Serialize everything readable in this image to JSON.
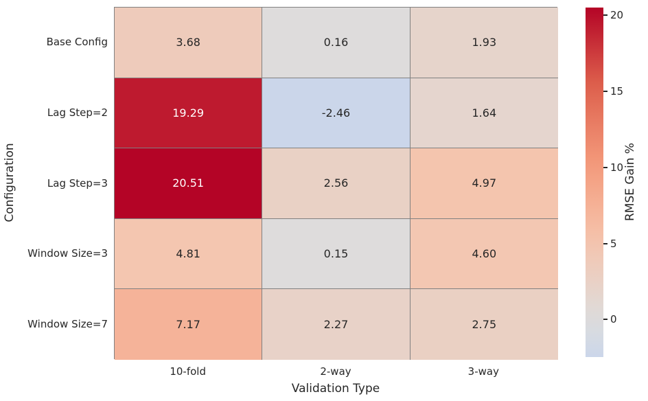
{
  "chart_data": {
    "type": "heatmap",
    "title": "",
    "rows": [
      "Base Config",
      "Lag Step=2",
      "Lag Step=3",
      "Window Size=3",
      "Window Size=7"
    ],
    "columns": [
      "10-fold",
      "2-way",
      "3-way"
    ],
    "values": [
      [
        3.68,
        0.16,
        1.93
      ],
      [
        19.29,
        -2.46,
        1.64
      ],
      [
        20.51,
        2.56,
        4.97
      ],
      [
        4.81,
        0.15,
        4.6
      ],
      [
        7.17,
        2.27,
        2.75
      ]
    ],
    "xlabel": "Validation Type",
    "ylabel": "Configuration",
    "annotation_format": "0.00",
    "colorbar": {
      "label": "RMSE Gain %",
      "ticks": [
        0,
        5,
        10,
        15,
        20
      ],
      "vmin": -2.46,
      "vmax": 20.51,
      "center": 0
    },
    "colormap": {
      "name": "coolwarm",
      "stops": [
        {
          "t": 0.0,
          "color": "#3b4cc0"
        },
        {
          "t": 0.125,
          "color": "#6483ec"
        },
        {
          "t": 0.25,
          "color": "#8eb0fe"
        },
        {
          "t": 0.375,
          "color": "#b7cff9"
        },
        {
          "t": 0.5,
          "color": "#dddddd"
        },
        {
          "t": 0.625,
          "color": "#f5c4ad"
        },
        {
          "t": 0.75,
          "color": "#f49a7b"
        },
        {
          "t": 0.875,
          "color": "#de614d"
        },
        {
          "t": 1.0,
          "color": "#b40426"
        }
      ]
    },
    "grid_line_color": "#808080",
    "text_color_on_light": "#262626",
    "text_color_on_dark": "#ffffff",
    "background_color": "#ffffff"
  }
}
